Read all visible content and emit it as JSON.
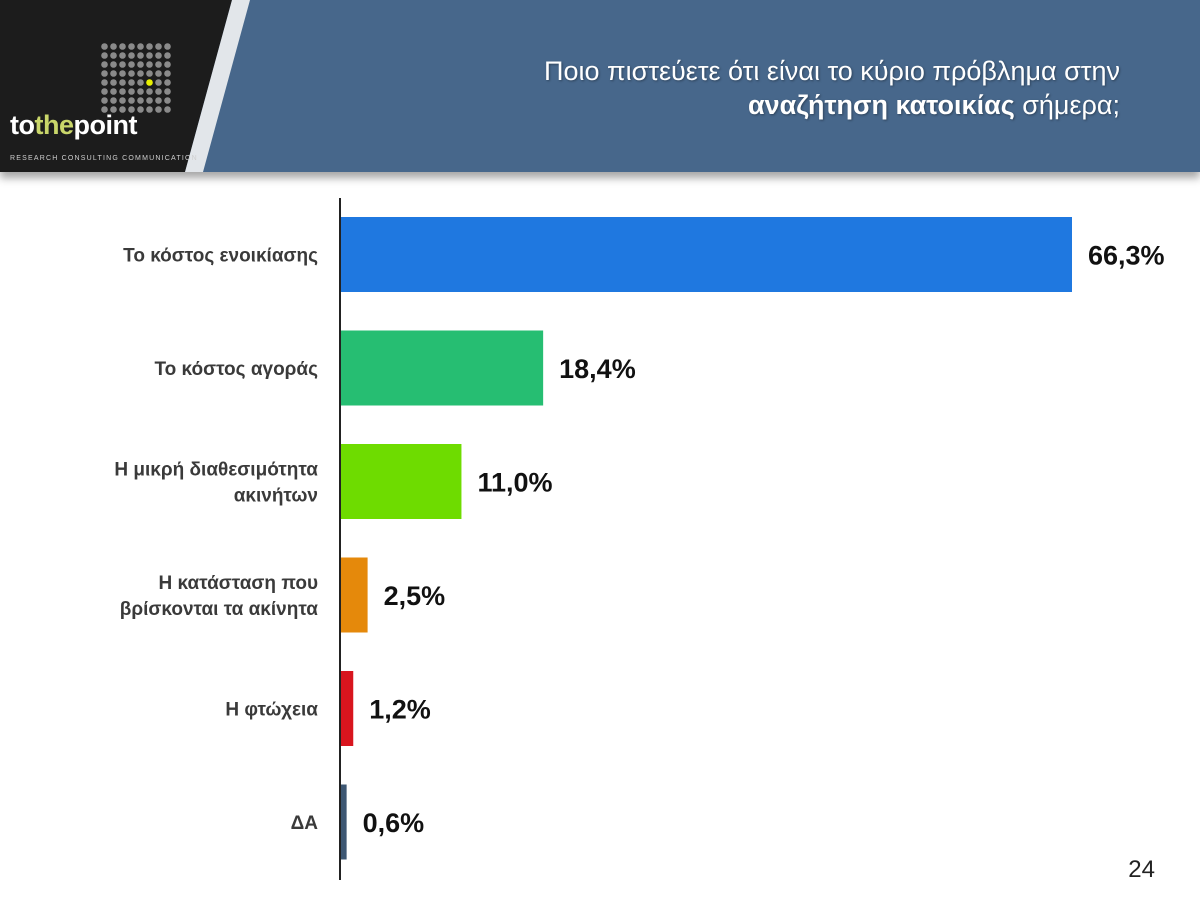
{
  "header": {
    "title_line1": "Ποιο πιστεύετε ότι είναι το κύριο πρόβλημα στην",
    "title_line2_bold": "αναζήτηση κατοικίας",
    "title_line2_rest": " σήμερα;",
    "background_color": "#47678b"
  },
  "logo": {
    "name_part1": "to",
    "name_part2": "the",
    "name_part3": "point",
    "tagline": "RESEARCH  CONSULTING  COMMUNICATION"
  },
  "chart_data": {
    "type": "bar",
    "orientation": "horizontal",
    "title": "Ποιο πιστεύετε ότι είναι το κύριο πρόβλημα στην αναζήτηση κατοικίας σήμερα;",
    "categories": [
      [
        "Το κόστος ενοικίασης"
      ],
      [
        "Το κόστος αγοράς"
      ],
      [
        "Η μικρή διαθεσιμότητα",
        "ακινήτων"
      ],
      [
        "Η κατάσταση που",
        "βρίσκονται τα ακίνητα"
      ],
      [
        "Η φτώχεια"
      ],
      [
        "ΔΑ"
      ]
    ],
    "values": [
      66.3,
      18.4,
      11.0,
      2.5,
      1.2,
      0.6
    ],
    "value_labels": [
      "66,3%",
      "18,4%",
      "11,0%",
      "2,5%",
      "1,2%",
      "0,6%"
    ],
    "colors": [
      "#1f78e0",
      "#26be72",
      "#6edc00",
      "#e5890b",
      "#d8151e",
      "#3d5773"
    ],
    "xlim": [
      0,
      66.3
    ],
    "unit": "%",
    "grid": false,
    "legend": "none"
  },
  "page_number": "24"
}
